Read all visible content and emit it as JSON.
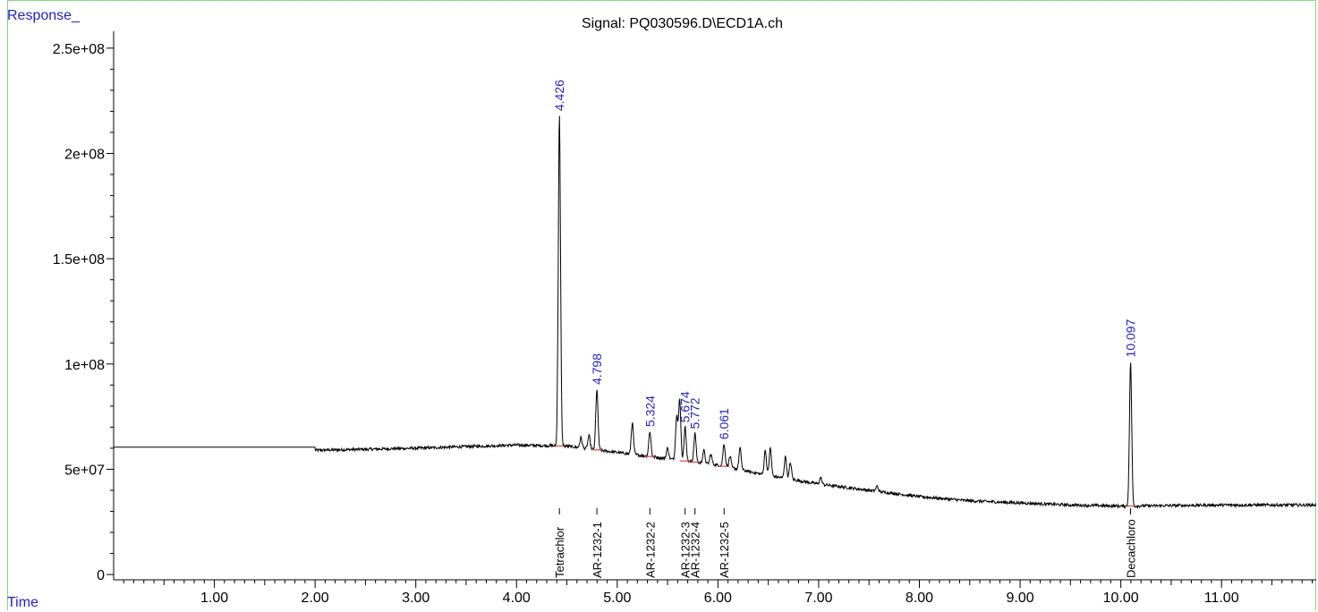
{
  "chart_data": {
    "type": "line",
    "title": "Signal: PQ030596.D\\ECD1A.ch",
    "ylabel": "Response_",
    "xlabel": "Time",
    "xlim": [
      0.0,
      11.94
    ],
    "ylim": [
      -2500000,
      258000000
    ],
    "x_ticks": [
      "1.00",
      "2.00",
      "3.00",
      "4.00",
      "5.00",
      "6.00",
      "7.00",
      "8.00",
      "9.00",
      "10.00",
      "11.00"
    ],
    "x_tick_values": [
      1,
      2,
      3,
      4,
      5,
      6,
      7,
      8,
      9,
      10,
      11
    ],
    "y_ticks": [
      "0",
      "5e+07",
      "1e+08",
      "1.5e+08",
      "2e+08",
      "2.5e+08"
    ],
    "y_tick_values": [
      0,
      50000000,
      100000000,
      150000000,
      200000000,
      250000000
    ],
    "baseline": {
      "initial_level": 60500000,
      "step_time": 2.0,
      "segments": [
        [
          2.0,
          59000000
        ],
        [
          3.0,
          60000000
        ],
        [
          4.0,
          61500000
        ],
        [
          4.5,
          61000000
        ],
        [
          5.0,
          58000000
        ],
        [
          5.5,
          55000000
        ],
        [
          6.0,
          52000000
        ],
        [
          6.5,
          47000000
        ],
        [
          7.0,
          43000000
        ],
        [
          7.5,
          40000000
        ],
        [
          8.0,
          37000000
        ],
        [
          8.5,
          35000000
        ],
        [
          9.0,
          34000000
        ],
        [
          9.5,
          33000000
        ],
        [
          10.0,
          32500000
        ],
        [
          11.0,
          33000000
        ],
        [
          11.94,
          33000000
        ]
      ]
    },
    "peaks": [
      {
        "x": 4.426,
        "y": 218000000,
        "label": "4.426",
        "compound": "Tetrachlor"
      },
      {
        "x": 4.64,
        "y": 65000000
      },
      {
        "x": 4.72,
        "y": 66000000
      },
      {
        "x": 4.798,
        "y": 88000000,
        "label": "4.798",
        "compound": "AR-1232-1"
      },
      {
        "x": 5.15,
        "y": 72000000
      },
      {
        "x": 5.324,
        "y": 68000000,
        "label": "5.324",
        "compound": "AR-1232-2"
      },
      {
        "x": 5.5,
        "y": 60000000
      },
      {
        "x": 5.59,
        "y": 75000000
      },
      {
        "x": 5.62,
        "y": 83000000
      },
      {
        "x": 5.674,
        "y": 70000000,
        "label": "5.674",
        "compound": "AR-1232-3"
      },
      {
        "x": 5.772,
        "y": 67000000,
        "label": "5.772",
        "compound": "AR-1232-4"
      },
      {
        "x": 5.86,
        "y": 59000000
      },
      {
        "x": 5.93,
        "y": 57000000
      },
      {
        "x": 6.061,
        "y": 62000000,
        "label": "6.061",
        "compound": "AR-1232-5"
      },
      {
        "x": 6.12,
        "y": 56000000
      },
      {
        "x": 6.22,
        "y": 60000000
      },
      {
        "x": 6.47,
        "y": 59000000
      },
      {
        "x": 6.52,
        "y": 60000000
      },
      {
        "x": 6.67,
        "y": 56000000
      },
      {
        "x": 6.72,
        "y": 53000000
      },
      {
        "x": 7.02,
        "y": 46000000
      },
      {
        "x": 7.58,
        "y": 42000000
      },
      {
        "x": 10.097,
        "y": 101000000,
        "label": "10.097",
        "compound": "Decachloro"
      }
    ],
    "colors": {
      "trace": "#000000",
      "peak_label": "#1f1fd6",
      "baseline_marker": "#e04040",
      "frame": "#7fdc7f"
    }
  }
}
